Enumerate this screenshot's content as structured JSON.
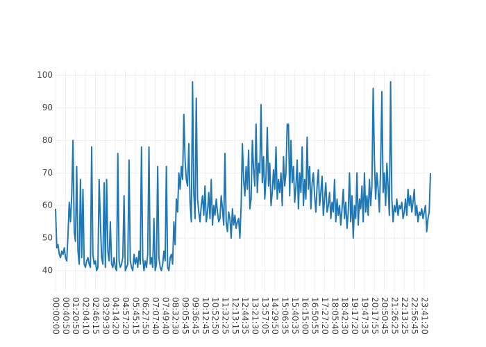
{
  "chart_data": {
    "type": "line",
    "categories": [
      "00:00:00",
      null,
      null,
      null,
      null,
      null,
      null,
      null,
      "00:40:50",
      null,
      null,
      null,
      null,
      null,
      null,
      null,
      "01:20:50",
      null,
      null,
      null,
      null,
      null,
      null,
      null,
      "02:04:10",
      null,
      null,
      null,
      null,
      null,
      null,
      null,
      "02:46:15",
      null,
      null,
      null,
      null,
      null,
      null,
      null,
      "03:29:30",
      null,
      null,
      null,
      null,
      null,
      null,
      null,
      "04:14:20",
      null,
      null,
      null,
      null,
      null,
      null,
      null,
      "04:57:20",
      null,
      null,
      null,
      null,
      null,
      null,
      null,
      "05:45:15",
      null,
      null,
      null,
      null,
      null,
      null,
      null,
      "06:27:50",
      null,
      null,
      null,
      null,
      null,
      null,
      null,
      "07:07:40",
      null,
      null,
      null,
      null,
      null,
      null,
      null,
      "07:49:40",
      null,
      null,
      null,
      null,
      null,
      null,
      null,
      "08:32:30",
      null,
      null,
      null,
      null,
      null,
      null,
      null,
      "09:05:45",
      null,
      null,
      null,
      null,
      null,
      null,
      null,
      "09:36:45",
      null,
      null,
      null,
      null,
      null,
      null,
      null,
      "10:12:45",
      null,
      null,
      null,
      null,
      null,
      null,
      null,
      "10:52:50",
      null,
      null,
      null,
      null,
      null,
      null,
      null,
      "11:32:25",
      null,
      null,
      null,
      null,
      null,
      null,
      null,
      "12:13:15",
      null,
      null,
      null,
      null,
      null,
      null,
      null,
      "12:44:35",
      null,
      null,
      null,
      null,
      null,
      null,
      null,
      "13:21:30",
      null,
      null,
      null,
      null,
      null,
      null,
      null,
      "13:57:05",
      null,
      null,
      null,
      null,
      null,
      null,
      null,
      "14:29:50",
      null,
      null,
      null,
      null,
      null,
      null,
      null,
      "15:06:35",
      null,
      null,
      null,
      null,
      null,
      null,
      null,
      "15:40:35",
      null,
      null,
      null,
      null,
      null,
      null,
      null,
      "16:15:00",
      null,
      null,
      null,
      null,
      null,
      null,
      null,
      "16:50:55",
      null,
      null,
      null,
      null,
      null,
      null,
      null,
      "17:27:20",
      null,
      null,
      null,
      null,
      null,
      null,
      null,
      "18:05:40",
      null,
      null,
      null,
      null,
      null,
      null,
      null,
      "18:42:30",
      null,
      null,
      null,
      null,
      null,
      null,
      null,
      "19:17:20",
      null,
      null,
      null,
      null,
      null,
      null,
      null,
      "19:47:35",
      null,
      null,
      null,
      null,
      null,
      null,
      null,
      "20:17:55",
      null,
      null,
      null,
      null,
      null,
      null,
      null,
      "20:50:45",
      null,
      null,
      null,
      null,
      null,
      null,
      null,
      "21:26:25",
      null,
      null,
      null,
      null,
      null,
      null,
      null,
      "22:13:25",
      null,
      null,
      null,
      null,
      null,
      null,
      null,
      "22:56:45",
      null,
      null,
      null,
      null,
      null,
      null,
      null,
      "23:41:20",
      null,
      null,
      null,
      null,
      null
    ],
    "values": [
      59,
      47,
      48,
      45,
      44,
      46,
      45,
      47,
      44,
      43,
      51,
      61,
      55,
      63,
      80,
      52,
      49,
      72,
      46,
      42,
      68,
      44,
      65,
      42,
      41,
      43,
      44,
      42,
      41,
      78,
      45,
      42,
      43,
      40,
      41,
      68,
      55,
      44,
      42,
      67,
      41,
      68,
      46,
      43,
      55,
      42,
      41,
      44,
      41,
      40,
      76,
      43,
      41,
      42,
      44,
      63,
      40,
      41,
      42,
      74,
      43,
      41,
      40,
      45,
      42,
      44,
      41,
      46,
      42,
      78,
      44,
      40,
      43,
      41,
      45,
      78,
      42,
      44,
      41,
      56,
      40,
      42,
      72,
      44,
      41,
      40,
      42,
      46,
      43,
      72,
      41,
      40,
      44,
      45,
      42,
      55,
      48,
      62,
      58,
      70,
      65,
      72,
      68,
      88,
      74,
      68,
      66,
      79,
      61,
      55,
      98,
      64,
      56,
      93,
      62,
      58,
      55,
      60,
      63,
      57,
      66,
      55,
      58,
      64,
      56,
      68,
      54,
      60,
      57,
      62,
      58,
      55,
      56,
      63,
      59,
      54,
      76,
      55,
      52,
      58,
      56,
      50,
      59,
      54,
      57,
      53,
      55,
      56,
      50,
      60,
      79,
      68,
      63,
      72,
      65,
      77,
      59,
      62,
      80,
      71,
      66,
      85,
      64,
      73,
      70,
      91,
      67,
      75,
      62,
      69,
      84,
      66,
      73,
      60,
      64,
      71,
      65,
      78,
      62,
      68,
      64,
      70,
      60,
      75,
      66,
      70,
      85,
      85,
      63,
      80,
      67,
      72,
      61,
      66,
      74,
      59,
      70,
      64,
      78,
      60,
      68,
      62,
      81,
      65,
      72,
      59,
      67,
      70,
      63,
      58,
      66,
      71,
      60,
      64,
      69,
      57,
      62,
      67,
      58,
      60,
      64,
      56,
      61,
      58,
      68,
      55,
      62,
      57,
      60,
      54,
      59,
      65,
      56,
      61,
      53,
      58,
      70,
      55,
      63,
      50,
      60,
      56,
      70,
      54,
      62,
      59,
      66,
      55,
      70,
      58,
      63,
      57,
      68,
      60,
      66,
      96,
      74,
      62,
      70,
      65,
      58,
      72,
      95,
      64,
      70,
      60,
      73,
      66,
      57,
      98,
      62,
      55,
      60,
      58,
      62,
      57,
      60,
      59,
      61,
      56,
      58,
      62,
      57,
      65,
      60,
      63,
      58,
      61,
      65,
      57,
      60,
      55,
      58,
      57,
      59,
      56,
      58,
      60,
      52,
      56,
      58,
      70
    ],
    "color": "#1f77b4",
    "ylim": [
      33.6,
      101.5
    ],
    "yticks": [
      40,
      50,
      60,
      70,
      80,
      90,
      100
    ],
    "grid": true
  }
}
